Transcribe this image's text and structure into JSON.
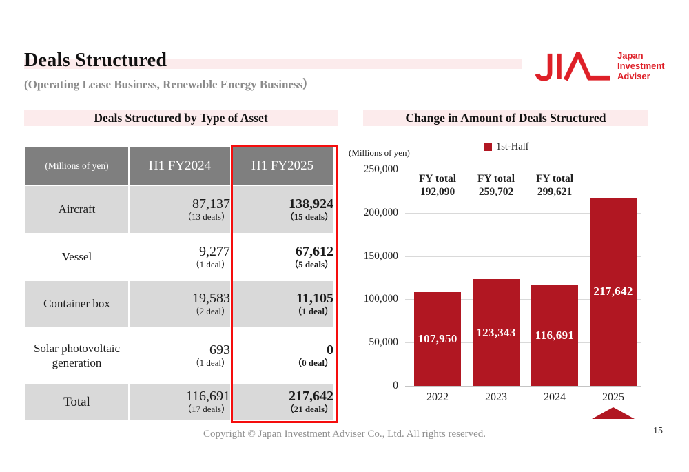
{
  "slide": {
    "title": "Deals Structured",
    "subtitle": "(Operating Lease Business, Renewable Energy Business）",
    "footer": "Copyright © Japan Investment Adviser Co., Ltd. All rights reserved.",
    "page_number": "15"
  },
  "logo": {
    "acronym": "JIA",
    "lines": [
      "Japan",
      "Investment",
      "Adviser"
    ],
    "color": "#de2028"
  },
  "left_section": {
    "heading": "Deals Structured by Type of Asset",
    "table": {
      "unit_label": "(Millions of yen)",
      "columns": [
        "H1 FY2024",
        "H1 FY2025"
      ],
      "highlighted_column": "H1 FY2025",
      "rows": [
        {
          "asset": "Aircraft",
          "fy2024_value": "87,137",
          "fy2024_deals": "（13 deals）",
          "fy2025_value": "138,924",
          "fy2025_deals": "（15 deals）",
          "is_total": false
        },
        {
          "asset": "Vessel",
          "fy2024_value": "9,277",
          "fy2024_deals": "（1 deal）",
          "fy2025_value": "67,612",
          "fy2025_deals": "（5 deals）",
          "is_total": false
        },
        {
          "asset": "Container box",
          "fy2024_value": "19,583",
          "fy2024_deals": "（2 deal）",
          "fy2025_value": "11,105",
          "fy2025_deals": "（1 deal）",
          "is_total": false
        },
        {
          "asset": "Solar photovoltaic generation",
          "fy2024_value": "693",
          "fy2024_deals": "（1 deal）",
          "fy2025_value": "0",
          "fy2025_deals": "（0 deal）",
          "is_total": false
        },
        {
          "asset": "Total",
          "fy2024_value": "116,691",
          "fy2024_deals": "（17 deals）",
          "fy2025_value": "217,642",
          "fy2025_deals": "（21 deals）",
          "is_total": true
        }
      ]
    }
  },
  "right_section": {
    "heading": "Change in Amount of Deals Structured",
    "chart_data": {
      "type": "bar",
      "title": "Change in Amount of Deals Structured",
      "unit_label": "(Millions of yen)",
      "legend": [
        {
          "name": "1st-Half",
          "color": "#b11722"
        }
      ],
      "legend_position": "top",
      "categories": [
        "2022",
        "2023",
        "2024",
        "2025"
      ],
      "values": [
        107950,
        123343,
        116691,
        217642
      ],
      "value_labels": [
        "107,950",
        "123,343",
        "116,691",
        "217,642"
      ],
      "fy_total_annotations": [
        {
          "category": "2022",
          "label": "FY total",
          "value": "192,090"
        },
        {
          "category": "2023",
          "label": "FY total",
          "value": "259,702"
        },
        {
          "category": "2024",
          "label": "FY total",
          "value": "299,621"
        }
      ],
      "ylim": [
        0,
        250000
      ],
      "ytick_labels": [
        "0",
        "50,000",
        "100,000",
        "150,000",
        "200,000",
        "250,000"
      ],
      "grid": true,
      "highlight_marker_category": "2025"
    }
  },
  "colors": {
    "bar_red": "#b11722",
    "logo_red": "#de2028",
    "highlight_pink": "#fcebec",
    "table_header_gray": "#7f7f7f",
    "table_row_gray": "#d9d9d9",
    "column_outline_red": "#f50d0d"
  }
}
